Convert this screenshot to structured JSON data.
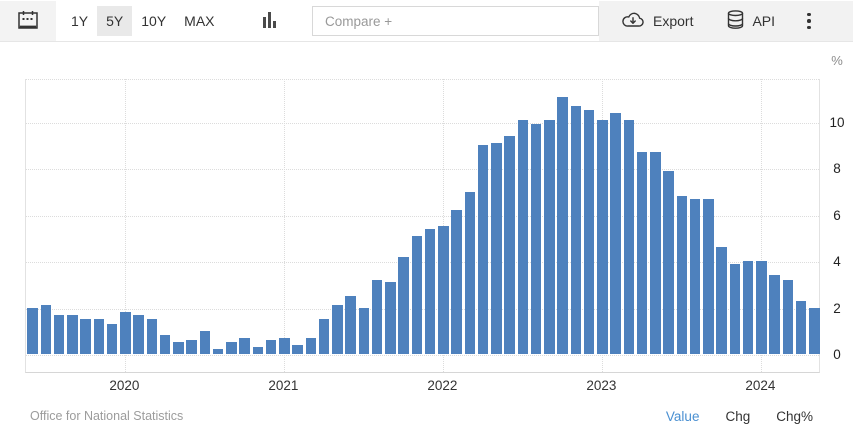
{
  "toolbar": {
    "ranges": [
      {
        "label": "1Y",
        "active": false
      },
      {
        "label": "5Y",
        "active": true
      },
      {
        "label": "10Y",
        "active": false
      },
      {
        "label": "MAX",
        "active": false
      }
    ],
    "compare_placeholder": "Compare +",
    "export_label": "Export",
    "api_label": "API"
  },
  "icons": {
    "calendar": "calendar-icon",
    "chart_type": "column-chart-icon",
    "export": "cloud-download-icon",
    "api": "database-icon",
    "menu": "kebab-menu-icon"
  },
  "chart_data": {
    "type": "bar",
    "title": "",
    "unit_label": "%",
    "categories": [
      "2019-06",
      "2019-07",
      "2019-08",
      "2019-09",
      "2019-10",
      "2019-11",
      "2019-12",
      "2020-01",
      "2020-02",
      "2020-03",
      "2020-04",
      "2020-05",
      "2020-06",
      "2020-07",
      "2020-08",
      "2020-09",
      "2020-10",
      "2020-11",
      "2020-12",
      "2021-01",
      "2021-02",
      "2021-03",
      "2021-04",
      "2021-05",
      "2021-06",
      "2021-07",
      "2021-08",
      "2021-09",
      "2021-10",
      "2021-11",
      "2021-12",
      "2022-01",
      "2022-02",
      "2022-03",
      "2022-04",
      "2022-05",
      "2022-06",
      "2022-07",
      "2022-08",
      "2022-09",
      "2022-10",
      "2022-11",
      "2022-12",
      "2023-01",
      "2023-02",
      "2023-03",
      "2023-04",
      "2023-05",
      "2023-06",
      "2023-07",
      "2023-08",
      "2023-09",
      "2023-10",
      "2023-11",
      "2023-12",
      "2024-01",
      "2024-02",
      "2024-03",
      "2024-04",
      "2024-05"
    ],
    "values": [
      2.0,
      2.1,
      1.7,
      1.7,
      1.5,
      1.5,
      1.3,
      1.8,
      1.7,
      1.5,
      0.8,
      0.5,
      0.6,
      1.0,
      0.2,
      0.5,
      0.7,
      0.3,
      0.6,
      0.7,
      0.4,
      0.7,
      1.5,
      2.1,
      2.5,
      2.0,
      3.2,
      3.1,
      4.2,
      5.1,
      5.4,
      5.5,
      6.2,
      7.0,
      9.0,
      9.1,
      9.4,
      10.1,
      9.9,
      10.1,
      11.1,
      10.7,
      10.5,
      10.1,
      10.4,
      10.1,
      8.7,
      8.7,
      7.9,
      6.8,
      6.7,
      6.7,
      4.6,
      3.9,
      4.0,
      4.0,
      3.4,
      3.2,
      2.3,
      2.0
    ],
    "xlabel": "",
    "ylabel": "%",
    "x_year_ticks": [
      "2020",
      "2021",
      "2022",
      "2023",
      "2024"
    ],
    "yticks": [
      0,
      2,
      4,
      6,
      8,
      10
    ],
    "ylim": [
      -0.8,
      12
    ],
    "yaxis_side": "right",
    "grid": "dotted",
    "legend": false,
    "bar_color": "#4e81bd"
  },
  "footer": {
    "source": "Office for National Statistics",
    "modes": [
      {
        "label": "Value",
        "active": true
      },
      {
        "label": "Chg",
        "active": false
      },
      {
        "label": "Chg%",
        "active": false
      }
    ]
  },
  "colors": {
    "bar": "#4e81bd",
    "active_mode_link": "#4a90d2",
    "toolbar_right_bg": "#f2f2f2",
    "active_range_bg": "#e9e9e9",
    "gridline": "#dcdcdc",
    "axis_text": "#222222",
    "muted_text": "#9c9c9c"
  }
}
